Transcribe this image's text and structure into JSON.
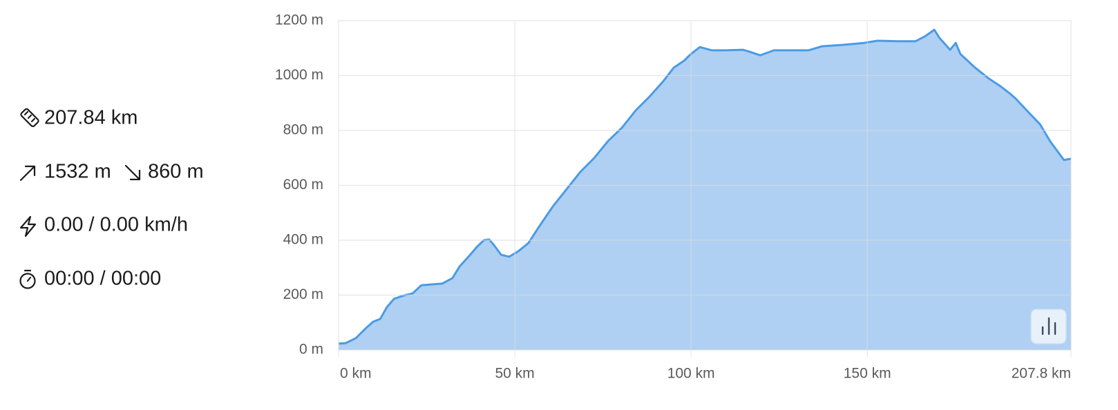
{
  "stats": {
    "distance": "207.84 km",
    "ascent": "1532 m",
    "descent": "860 m",
    "speed": "0.00 / 0.00 km/h",
    "time": "00:00 / 00:00"
  },
  "chart_data": {
    "type": "area",
    "color": "#4a9be3",
    "fill": "#abcdf2",
    "grid": true,
    "x": [
      0,
      2,
      4.9,
      7.8,
      9.8,
      11.8,
      13.7,
      15.7,
      18.6,
      21,
      23.5,
      26.5,
      29.4,
      32.3,
      34.3,
      37.2,
      39.2,
      41.2,
      42.7,
      44.1,
      46.1,
      48.4,
      51,
      53.9,
      56.9,
      60.8,
      64.7,
      68.6,
      72.5,
      76.5,
      80.4,
      84.3,
      88.2,
      92.1,
      95.1,
      98,
      100,
      102.5,
      105.9,
      109.8,
      114.7,
      116.6,
      119.6,
      123.5,
      127.4,
      133.3,
      137.2,
      143.1,
      149,
      152.9,
      158.8,
      163.7,
      166.6,
      169,
      170.5,
      173.5,
      175.1,
      176.4,
      180.4,
      184.3,
      187.8,
      190.6,
      192.1,
      196,
      199,
      201.9,
      205.8,
      207.8
    ],
    "values": [
      23,
      25,
      43,
      80,
      103,
      113,
      156,
      186,
      199,
      206,
      236,
      239,
      242,
      262,
      304,
      345,
      375,
      400,
      403,
      382,
      347,
      340,
      360,
      390,
      450,
      523,
      586,
      649,
      699,
      762,
      810,
      873,
      923,
      979,
      1029,
      1054,
      1079,
      1104,
      1092,
      1092,
      1094,
      1087,
      1074,
      1092,
      1092,
      1092,
      1107,
      1112,
      1119,
      1127,
      1125,
      1125,
      1145,
      1167,
      1137,
      1094,
      1119,
      1079,
      1031,
      991,
      961,
      933,
      916,
      863,
      823,
      760,
      692,
      697
    ],
    "xlim": [
      0,
      207.8
    ],
    "ylim": [
      0,
      1200
    ],
    "xticks": [
      {
        "value": 0,
        "label": "0 km"
      },
      {
        "value": 50,
        "label": "50 km"
      },
      {
        "value": 100,
        "label": "100 km"
      },
      {
        "value": 150,
        "label": "150 km"
      },
      {
        "value": 207.8,
        "label": "207.8 km"
      }
    ],
    "yticks": [
      {
        "value": 0,
        "label": "0 m"
      },
      {
        "value": 200,
        "label": "200 m"
      },
      {
        "value": 400,
        "label": "400 m"
      },
      {
        "value": 600,
        "label": "600 m"
      },
      {
        "value": 800,
        "label": "800 m"
      },
      {
        "value": 1000,
        "label": "1000 m"
      },
      {
        "value": 1200,
        "label": "1200 m"
      }
    ]
  }
}
